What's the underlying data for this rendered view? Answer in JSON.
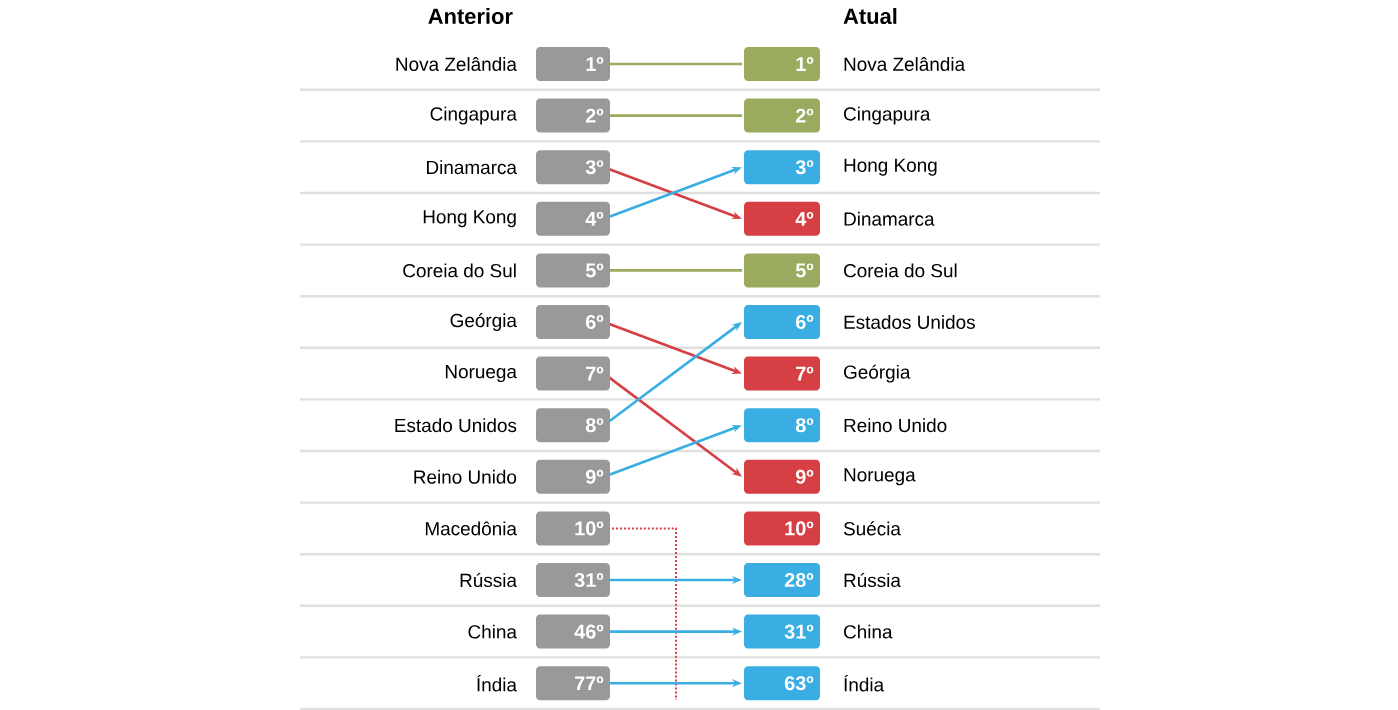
{
  "chart_data": {
    "type": "other",
    "categories": [
      "Anterior",
      "Atual"
    ],
    "y_categories": [
      "Nova Zelândia",
      "Cingapura",
      "Dinamarca",
      "Hong Kong",
      "Coreia do Sul",
      "Geórgia",
      "Noruega",
      "Estado Unidos",
      "Reino Unido",
      "Macedônia",
      "Rússia",
      "China",
      "Índia"
    ],
    "y2_categories": [
      "Nova Zelândia",
      "Cingapura",
      "Hong Kong",
      "Dinamarca",
      "Coreia do Sul",
      "Estados Unidos",
      "Geórgia",
      "Reino Unido",
      "Noruega",
      "Suécia",
      "Rússia",
      "China",
      "Índia"
    ],
    "series": [
      {
        "values": [
          1,
          1
        ],
        "value_labels": [
          "1º",
          "1º"
        ],
        "colors": [
          "#999999",
          "#9aaa5e"
        ]
      },
      {
        "values": [
          2,
          2
        ],
        "value_labels": [
          "2º",
          "2º"
        ],
        "colors": [
          "#999999",
          "#9aaa5e"
        ]
      },
      {
        "values": [
          3,
          4
        ],
        "value_labels": [
          "3º",
          "4º"
        ],
        "colors": [
          "#999999",
          "#d64045"
        ]
      },
      {
        "values": [
          4,
          3
        ],
        "value_labels": [
          "4º",
          "3º"
        ],
        "colors": [
          "#999999",
          "#3aaee2"
        ]
      },
      {
        "values": [
          5,
          5
        ],
        "value_labels": [
          "5º",
          "5º"
        ],
        "colors": [
          "#999999",
          "#9aaa5e"
        ]
      },
      {
        "values": [
          6,
          7
        ],
        "value_labels": [
          "6º",
          "7º"
        ],
        "colors": [
          "#999999",
          "#d64045"
        ]
      },
      {
        "values": [
          7,
          9
        ],
        "value_labels": [
          "7º",
          "9º"
        ],
        "colors": [
          "#999999",
          "#d64045"
        ]
      },
      {
        "values": [
          8,
          6
        ],
        "value_labels": [
          "8º",
          "6º"
        ],
        "colors": [
          "#999999",
          "#3aaee2"
        ]
      },
      {
        "values": [
          9,
          8
        ],
        "value_labels": [
          "9º",
          "8º"
        ],
        "colors": [
          "#999999",
          "#3aaee2"
        ]
      },
      {
        "values": [
          10,
          null
        ],
        "value_labels": [
          "10º",
          null
        ],
        "colors": [
          "#999999",
          "#d64045"
        ],
        "line_style": "dotted"
      },
      {
        "values": [
          null,
          10
        ],
        "value_labels": [
          null,
          "10º"
        ],
        "colors": [
          null,
          "#d64045"
        ]
      },
      {
        "values": [
          31,
          28
        ],
        "value_labels": [
          "31º",
          "28º"
        ],
        "colors": [
          "#999999",
          "#3aaee2"
        ]
      },
      {
        "values": [
          46,
          31
        ],
        "value_labels": [
          "46º",
          "31º"
        ],
        "colors": [
          "#999999",
          "#3aaee2"
        ]
      },
      {
        "values": [
          77,
          63
        ],
        "value_labels": [
          "77º",
          "63º"
        ],
        "colors": [
          "#999999",
          "#3aaee2"
        ]
      }
    ]
  }
}
